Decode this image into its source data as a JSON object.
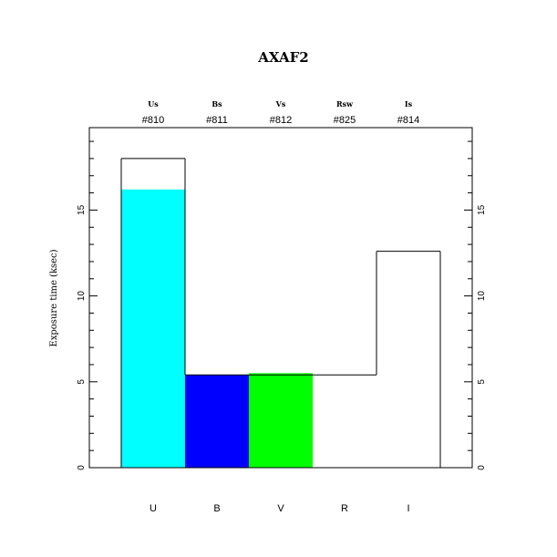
{
  "chart_data": {
    "type": "bar",
    "title": "AXAF2",
    "ylabel": "Exposure time (ksec)",
    "xlabel": "",
    "ylim": [
      0,
      19.8
    ],
    "yticks": [
      0,
      5,
      10,
      15
    ],
    "categories": [
      "U",
      "B",
      "V",
      "R",
      "I"
    ],
    "filters": [
      "Us",
      "Bs",
      "Vs",
      "Rsw",
      "Is"
    ],
    "filter_ids": [
      "#810",
      "#811",
      "#812",
      "#825",
      "#814"
    ],
    "series": [
      {
        "values": [
          18.0,
          5.4,
          5.4,
          5.4,
          12.6
        ],
        "color": "outline"
      },
      {
        "values": [
          16.2,
          5.4,
          5.5,
          0,
          0
        ],
        "colors": [
          "#00ffff",
          "#0000ff",
          "#00ff00",
          "#ffffff",
          "#ffffff"
        ]
      }
    ]
  }
}
